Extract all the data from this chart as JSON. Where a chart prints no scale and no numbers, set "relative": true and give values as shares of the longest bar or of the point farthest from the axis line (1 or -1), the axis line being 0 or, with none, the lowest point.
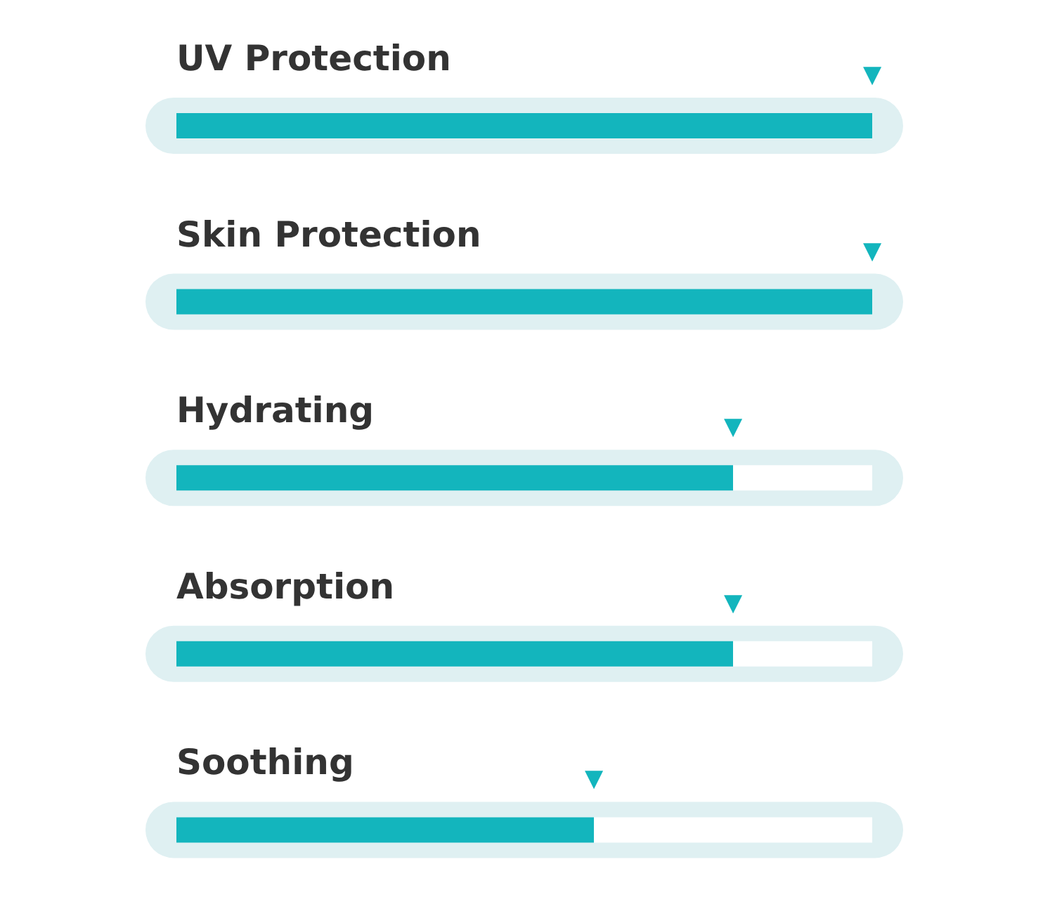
{
  "chart_data": {
    "type": "bar",
    "orientation": "horizontal",
    "relative": true,
    "stacked": true,
    "categories": [
      "UV Protection",
      "Skin Protection",
      "Hydrating",
      "Absorption",
      "Soothing"
    ],
    "series": [
      {
        "color": "#13b5bd",
        "values": [
          1,
          1,
          0.8,
          0.8,
          0.6
        ]
      },
      {
        "color": "#ffffff",
        "values": [
          0,
          0,
          0.2,
          0.2,
          0.4
        ]
      }
    ],
    "annotations": [
      "▼",
      "▼",
      "▼",
      "▼",
      "▼"
    ]
  }
}
